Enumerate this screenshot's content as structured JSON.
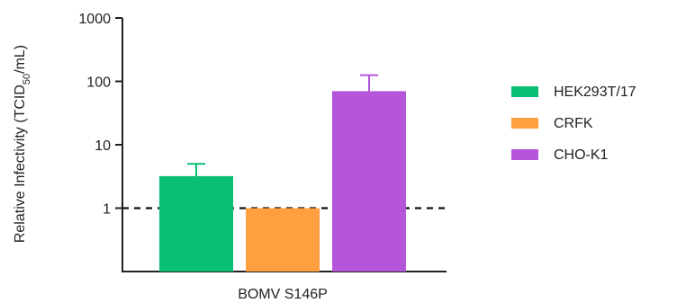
{
  "chart_data": {
    "type": "bar",
    "yscale": "log",
    "ylim": [
      0.1,
      1000
    ],
    "ylabel": {
      "prefix": "Relative Infectivity (TCID",
      "subscript": "50",
      "suffix": "/mL)"
    },
    "yticks": [
      {
        "value": 1,
        "label": "1"
      },
      {
        "value": 10,
        "label": "10"
      },
      {
        "value": 100,
        "label": "100"
      },
      {
        "value": 1000,
        "label": "1000"
      }
    ],
    "categories": [
      "BOMV S146P"
    ],
    "series": [
      {
        "name": "HEK293T/17",
        "value": 3.2,
        "error": 5.0,
        "color": "#0ABF73"
      },
      {
        "name": "CRFK",
        "value": 1.0,
        "error": null,
        "color": "#FF9F40"
      },
      {
        "name": "CHO-K1",
        "value": 70,
        "error": 125,
        "color": "#B455DB"
      }
    ],
    "reference_line": {
      "value": 1,
      "style": "dashed"
    },
    "legend_position": "right"
  }
}
